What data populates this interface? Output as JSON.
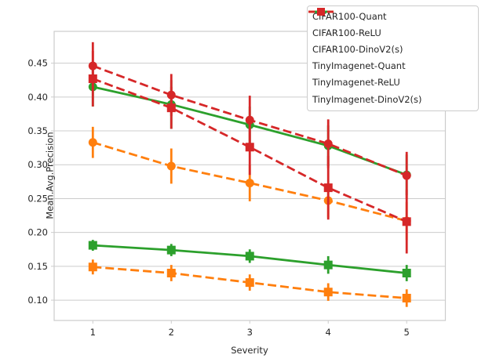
{
  "chart_data": {
    "type": "line",
    "title": "",
    "xlabel": "Severity",
    "ylabel": "Mean.Avg.Precision",
    "categories": [
      1,
      2,
      3,
      4,
      5
    ],
    "xtick_labels": [
      "1",
      "2",
      "3",
      "4",
      "5"
    ],
    "ytick_values": [
      0.1,
      0.15,
      0.2,
      0.25,
      0.3,
      0.35,
      0.4,
      0.45
    ],
    "ylim": [
      0.07,
      0.497
    ],
    "grid": "horizontal",
    "legend_position": "upper right",
    "error_bars": true,
    "colors": {
      "green": "#2ca02c",
      "orange": "#ff7f0e",
      "red": "#d62728",
      "grid": "#cccccc",
      "spine": "#cccccc",
      "text": "#262626"
    },
    "series": [
      {
        "name": "CIFAR100-Quant",
        "color": "#2ca02c",
        "linestyle": "solid",
        "marker": "circle",
        "values": [
          0.415,
          0.389,
          0.359,
          0.328,
          0.285
        ],
        "errors": [
          0.029,
          0.036,
          0.027,
          0.03,
          0.03
        ]
      },
      {
        "name": "CIFAR100-ReLU",
        "color": "#ff7f0e",
        "linestyle": "dashed",
        "marker": "circle",
        "values": [
          0.333,
          0.298,
          0.273,
          0.247,
          0.217
        ],
        "errors": [
          0.023,
          0.026,
          0.027,
          0.025,
          0.028
        ]
      },
      {
        "name": "CIFAR100-DinoV2(s)",
        "color": "#d62728",
        "linestyle": "dashed",
        "marker": "circle",
        "values": [
          0.446,
          0.403,
          0.366,
          0.331,
          0.284
        ],
        "errors": [
          0.035,
          0.031,
          0.036,
          0.036,
          0.035
        ]
      },
      {
        "name": "TinyImagenet-Quant",
        "color": "#2ca02c",
        "linestyle": "solid",
        "marker": "square",
        "values": [
          0.181,
          0.174,
          0.165,
          0.152,
          0.14
        ],
        "errors": [
          0.008,
          0.009,
          0.01,
          0.013,
          0.012
        ]
      },
      {
        "name": "TinyImagenet-ReLU",
        "color": "#ff7f0e",
        "linestyle": "dashed",
        "marker": "square",
        "values": [
          0.149,
          0.14,
          0.126,
          0.112,
          0.103
        ],
        "errors": [
          0.011,
          0.012,
          0.012,
          0.013,
          0.013
        ]
      },
      {
        "name": "TinyImagenet-DinoV2(s)",
        "color": "#d62728",
        "linestyle": "dashed",
        "marker": "square",
        "values": [
          0.427,
          0.384,
          0.326,
          0.266,
          0.216
        ],
        "errors": [
          0.041,
          0.031,
          0.041,
          0.047,
          0.047
        ]
      }
    ],
    "draw_order": [
      0,
      1,
      3,
      4,
      2,
      5
    ]
  }
}
